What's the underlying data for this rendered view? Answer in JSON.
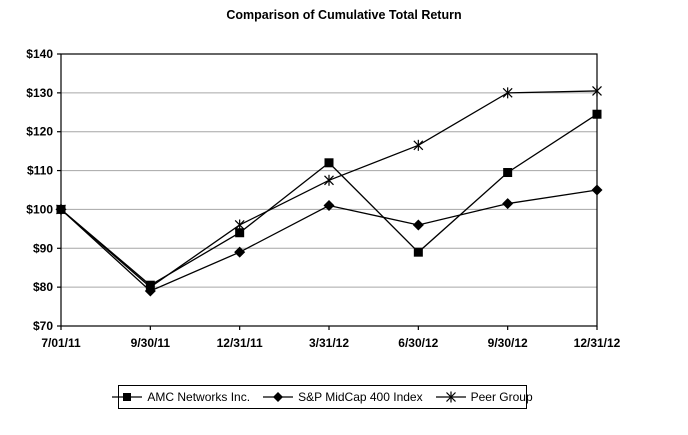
{
  "chart_data": {
    "type": "line",
    "title": "Comparison of Cumulative Total Return",
    "categories": [
      "7/01/11",
      "9/30/11",
      "12/31/11",
      "3/31/12",
      "6/30/12",
      "9/30/12",
      "12/31/12"
    ],
    "series": [
      {
        "name": "AMC Networks Inc.",
        "marker": "square-marker-icon",
        "values": [
          100,
          80.5,
          94,
          112,
          89,
          109.5,
          124.5
        ]
      },
      {
        "name": "S&P MidCap 400 Index",
        "marker": "diamond-marker-icon",
        "values": [
          100,
          79,
          89,
          101,
          96,
          101.5,
          105
        ]
      },
      {
        "name": "Peer Group",
        "marker": "asterisk-marker-icon",
        "values": [
          100,
          80,
          96,
          107.5,
          116.5,
          130,
          130.5
        ]
      }
    ],
    "y_axis": {
      "min": 70,
      "max": 140,
      "step": 10,
      "tick_labels": [
        "$140",
        "$130",
        "$120",
        "$110",
        "$100",
        "$90",
        "$80",
        "$70"
      ]
    },
    "x_axis": {
      "tick_labels": [
        "7/01/11",
        "9/30/11",
        "12/31/11",
        "3/31/12",
        "6/30/12",
        "9/30/12",
        "12/31/12"
      ]
    },
    "grid": "horizontal",
    "legend_position": "bottom",
    "colors": {
      "series_line": "#000000",
      "marker_fill": "#000000",
      "gridline": "#a6a6a6",
      "axis": "#000000",
      "text": "#000000",
      "background": "#ffffff"
    }
  }
}
